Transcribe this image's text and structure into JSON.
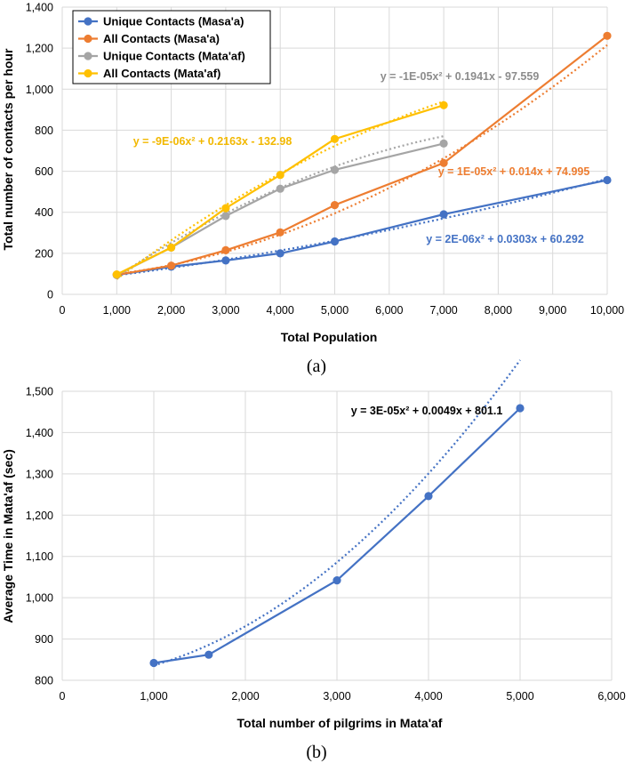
{
  "chart_data": [
    {
      "type": "line",
      "caption": "(a)",
      "xlabel": "Total Population",
      "ylabel": "Total number of contacts  per hour",
      "xlim": [
        0,
        10000
      ],
      "ylim": [
        0,
        1400
      ],
      "x_ticks": [
        "0",
        "1,000",
        "2,000",
        "3,000",
        "4,000",
        "5,000",
        "6,000",
        "7,000",
        "8,000",
        "9,000",
        "10,000"
      ],
      "y_ticks": [
        "0",
        "200",
        "400",
        "600",
        "800",
        "1,000",
        "1,200",
        "1,400"
      ],
      "grid": true,
      "legend_position": "top-left",
      "series": [
        {
          "name": "Unique Contacts (Masa'a)",
          "color": "#4472C4",
          "x": [
            1000,
            2000,
            3000,
            4000,
            5000,
            7000,
            10000
          ],
          "y": [
            95,
            135,
            165,
            200,
            258,
            390,
            557
          ],
          "trendline": {
            "a": 2e-06,
            "b": 0.0303,
            "c": 60.292,
            "x_range": [
              1000,
              10000
            ]
          },
          "equation": "y = 2E-06x² + 0.0303x + 60.292"
        },
        {
          "name": "All Contacts (Masa'a)",
          "color": "#ED7D31",
          "x": [
            1000,
            2000,
            3000,
            4000,
            5000,
            7000,
            10000
          ],
          "y": [
            95,
            140,
            215,
            302,
            435,
            640,
            1260
          ],
          "trendline": {
            "a": 1e-05,
            "b": 0.014,
            "c": 74.995,
            "x_range": [
              1000,
              10000
            ]
          },
          "equation": "y = 1E-05x² + 0.014x + 74.995"
        },
        {
          "name": "Unique Contacts (Mata'af)",
          "color": "#A5A5A5",
          "x": [
            1000,
            2000,
            3000,
            4000,
            5000,
            7000
          ],
          "y": [
            95,
            228,
            382,
            515,
            607,
            735
          ],
          "trendline": {
            "a": -1e-05,
            "b": 0.1941,
            "c": -97.559,
            "x_range": [
              1000,
              7000
            ]
          },
          "equation": "y = -1E-05x² + 0.1941x - 97.559"
        },
        {
          "name": "All Contacts (Mata'af)",
          "color": "#FFC000",
          "x": [
            1000,
            2000,
            3000,
            4000,
            5000,
            7000
          ],
          "y": [
            97,
            228,
            420,
            582,
            757,
            922
          ],
          "trendline": {
            "a": -9e-06,
            "b": 0.2163,
            "c": -132.98,
            "x_range": [
              1000,
              7000
            ]
          },
          "equation": "y = -9E-06x² + 0.2163x - 132.98"
        }
      ]
    },
    {
      "type": "line",
      "caption": "(b)",
      "xlabel": "Total number of pilgrims in Mata'af",
      "ylabel": "Average Time in Mata'af (sec)",
      "xlim": [
        0,
        6000
      ],
      "ylim": [
        800,
        1500
      ],
      "x_ticks": [
        "0",
        "1,000",
        "2,000",
        "3,000",
        "4,000",
        "5,000",
        "6,000"
      ],
      "y_ticks": [
        "800",
        "900",
        "1,000",
        "1,100",
        "1,200",
        "1,300",
        "1,400",
        "1,500"
      ],
      "grid": true,
      "series": [
        {
          "color": "#4472C4",
          "x": [
            1000,
            1600,
            3000,
            4000,
            5000
          ],
          "y": [
            842,
            862,
            1042,
            1246,
            1459
          ],
          "trendline": {
            "a": 3e-05,
            "b": 0.0049,
            "c": 801.1,
            "x_range": [
              1000,
              5000
            ]
          },
          "equation": "y = 3E-05x² + 0.0049x + 801.1"
        }
      ]
    }
  ]
}
